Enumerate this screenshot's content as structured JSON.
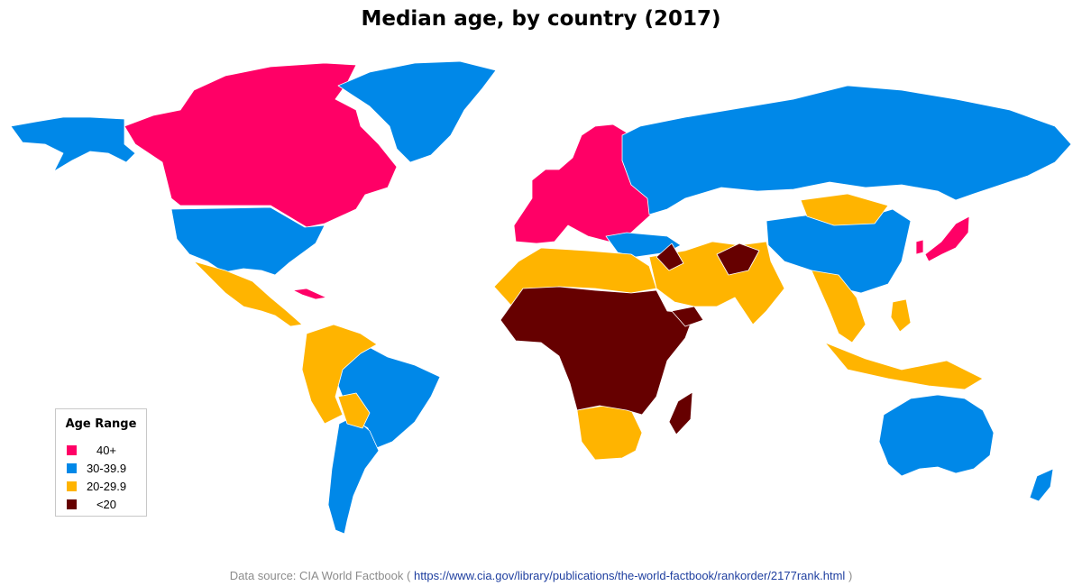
{
  "title": "Median age, by country (2017)",
  "legend": {
    "title": "Age Range",
    "items": [
      {
        "label": "40+",
        "color": "#FF0066"
      },
      {
        "label": "30-39.9",
        "color": "#0088E8"
      },
      {
        "label": "20-29.9",
        "color": "#FFB400"
      },
      {
        "label": "<20",
        "color": "#660000"
      }
    ]
  },
  "footer": {
    "prefix": "Data source: CIA World Factbook (",
    "url": "https://www.cia.gov/library/publications/the-world-factbook/rankorder/2177rank.html",
    "suffix": ")"
  },
  "colors": {
    "band_40_plus": "#FF0066",
    "band_30_39": "#0088E8",
    "band_20_29": "#FFB400",
    "band_under_20": "#660000",
    "border": "#ffffff",
    "background": "#ffffff"
  }
}
